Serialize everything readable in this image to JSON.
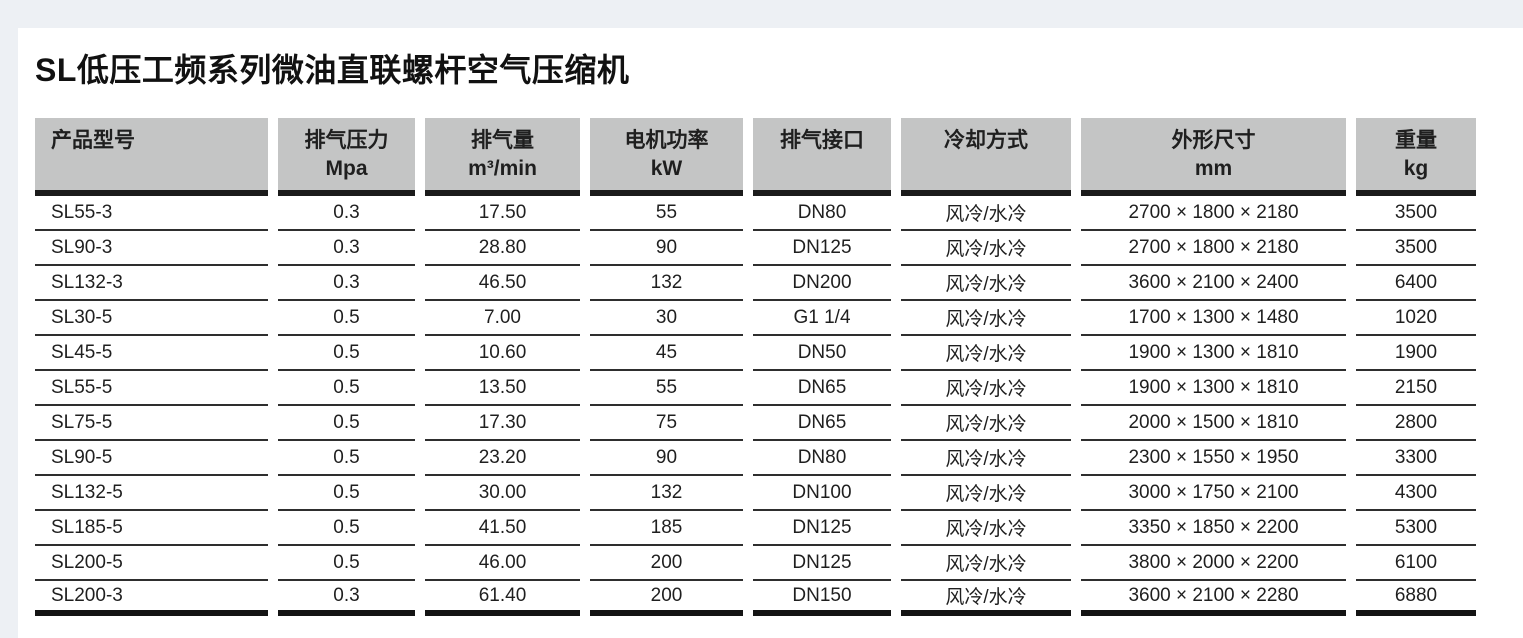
{
  "title": "SL低压工频系列微油直联螺杆空气压缩机",
  "colors": {
    "page_bg": "#edf0f4",
    "card_bg": "#ffffff",
    "header_bg": "#c4c5c5",
    "rule_dark": "#1b1b1b",
    "rule_thin": "#2e2e2e",
    "text": "#1f1f1f"
  },
  "table": {
    "columns": [
      {
        "label": "产品型号",
        "unit": "",
        "align": "left"
      },
      {
        "label": "排气压力",
        "unit": "Mpa",
        "align": "center"
      },
      {
        "label": "排气量",
        "unit": "m³/min",
        "align": "center"
      },
      {
        "label": "电机功率",
        "unit": "kW",
        "align": "center"
      },
      {
        "label": "排气接口",
        "unit": "",
        "align": "center"
      },
      {
        "label": "冷却方式",
        "unit": "",
        "align": "center"
      },
      {
        "label": "外形尺寸",
        "unit": "mm",
        "align": "center"
      },
      {
        "label": "重量",
        "unit": "kg",
        "align": "center"
      }
    ],
    "rows": [
      [
        "SL55-3",
        "0.3",
        "17.50",
        "55",
        "DN80",
        "风冷/水冷",
        "2700 × 1800 × 2180",
        "3500"
      ],
      [
        "SL90-3",
        "0.3",
        "28.80",
        "90",
        "DN125",
        "风冷/水冷",
        "2700 × 1800 × 2180",
        "3500"
      ],
      [
        "SL132-3",
        "0.3",
        "46.50",
        "132",
        "DN200",
        "风冷/水冷",
        "3600 × 2100 × 2400",
        "6400"
      ],
      [
        "SL30-5",
        "0.5",
        "7.00",
        "30",
        "G1 1/4",
        "风冷/水冷",
        "1700 × 1300 × 1480",
        "1020"
      ],
      [
        "SL45-5",
        "0.5",
        "10.60",
        "45",
        "DN50",
        "风冷/水冷",
        "1900 × 1300 × 1810",
        "1900"
      ],
      [
        "SL55-5",
        "0.5",
        "13.50",
        "55",
        "DN65",
        "风冷/水冷",
        "1900 × 1300 × 1810",
        "2150"
      ],
      [
        "SL75-5",
        "0.5",
        "17.30",
        "75",
        "DN65",
        "风冷/水冷",
        "2000 × 1500 × 1810",
        "2800"
      ],
      [
        "SL90-5",
        "0.5",
        "23.20",
        "90",
        "DN80",
        "风冷/水冷",
        "2300 × 1550 × 1950",
        "3300"
      ],
      [
        "SL132-5",
        "0.5",
        "30.00",
        "132",
        "DN100",
        "风冷/水冷",
        "3000 × 1750 × 2100",
        "4300"
      ],
      [
        "SL185-5",
        "0.5",
        "41.50",
        "185",
        "DN125",
        "风冷/水冷",
        "3350 × 1850 × 2200",
        "5300"
      ],
      [
        "SL200-5",
        "0.5",
        "46.00",
        "200",
        "DN125",
        "风冷/水冷",
        "3800 × 2000 × 2200",
        "6100"
      ],
      [
        "SL200-3",
        "0.3",
        "61.40",
        "200",
        "DN150",
        "风冷/水冷",
        "3600 × 2100 × 2280",
        "6880"
      ]
    ]
  }
}
